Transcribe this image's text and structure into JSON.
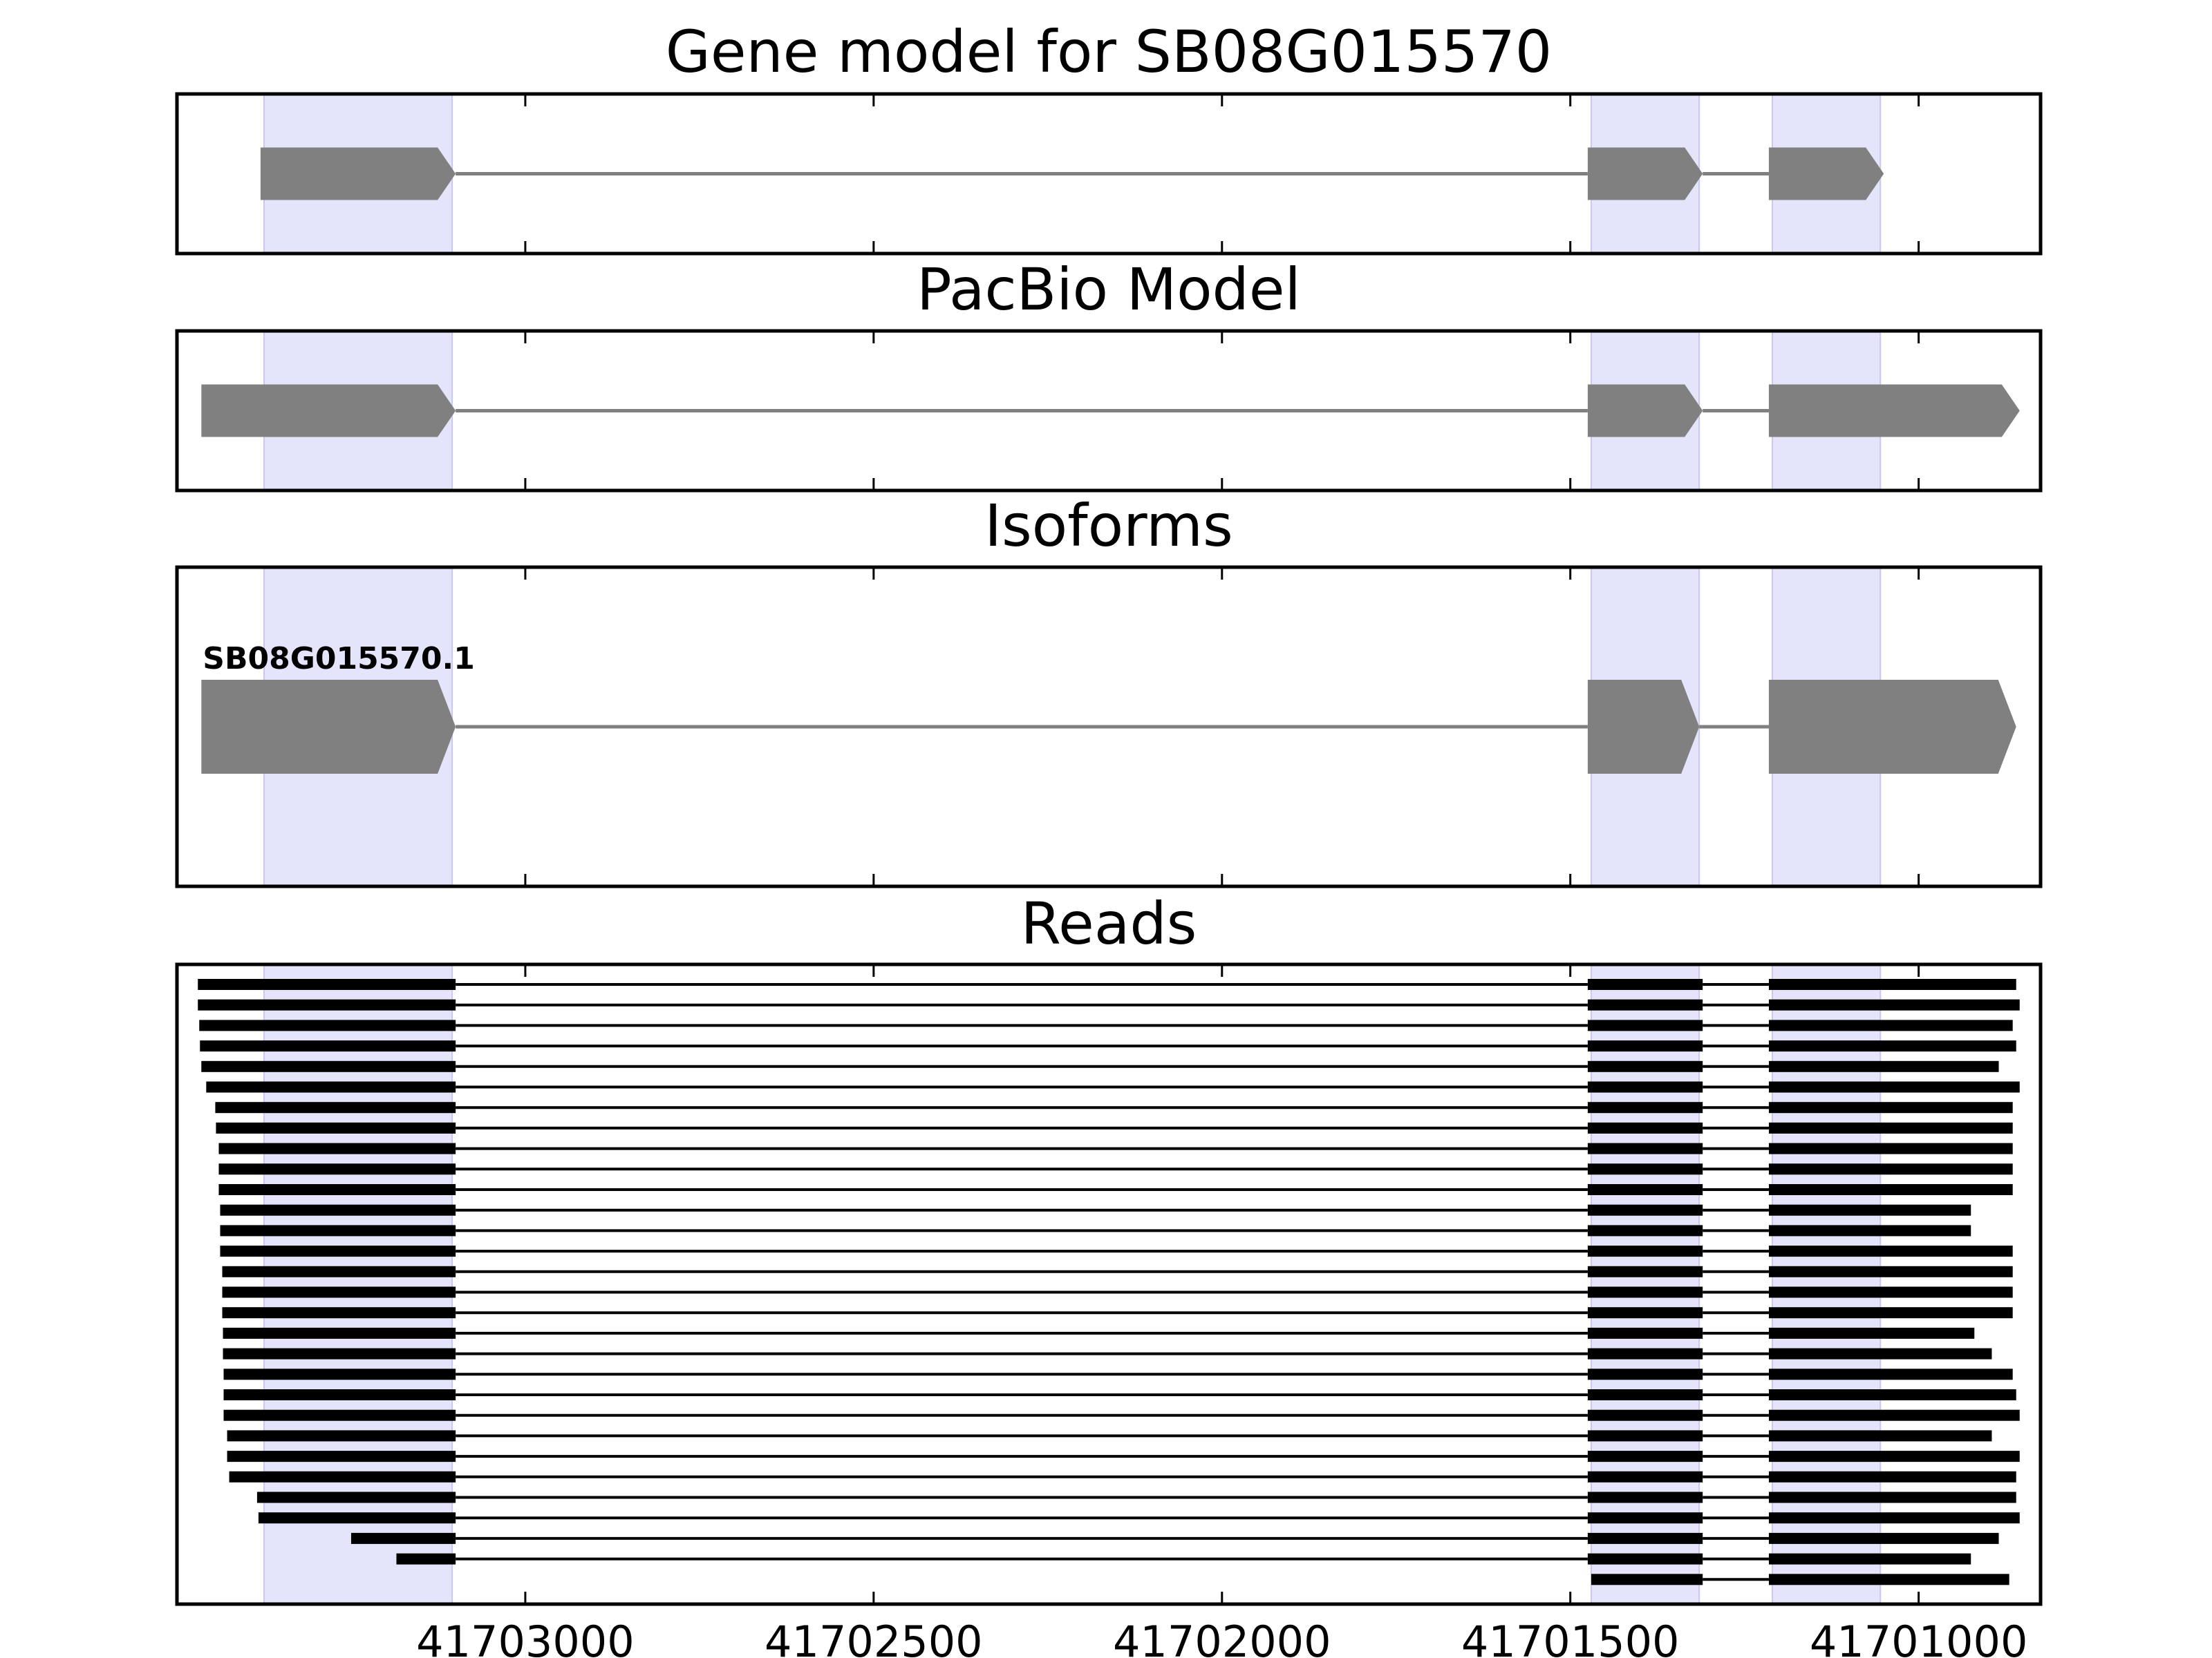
{
  "chart_data": {
    "type": "gene-model",
    "x_axis": {
      "direction": "descending",
      "ticks": [
        41703000,
        41702500,
        41702000,
        41701500,
        41701000
      ],
      "tick_labels": [
        "41703000",
        "41702500",
        "41702000",
        "41701500",
        "41701000"
      ],
      "xlim": [
        41703500,
        41700825
      ]
    },
    "exon_highlights": [
      [
        41703375,
        41703105
      ],
      [
        41701470,
        41701315
      ],
      [
        41701210,
        41701055
      ]
    ],
    "colors": {
      "model": "#808080",
      "read": "#000000",
      "highlight": "#e4e4fb",
      "highlight_edge": "#c8c8f0"
    },
    "panels": [
      {
        "title": "Gene model for SB08G015570",
        "kind": "model",
        "models": [
          {
            "label": "",
            "exons": [
              [
                41703380,
                41703100
              ],
              [
                41701475,
                41701310
              ],
              [
                41701215,
                41701050
              ]
            ]
          }
        ]
      },
      {
        "title": "PacBio Model",
        "kind": "model",
        "models": [
          {
            "label": "",
            "exons": [
              [
                41703465,
                41703100
              ],
              [
                41701475,
                41701310
              ],
              [
                41701215,
                41700855
              ]
            ]
          }
        ]
      },
      {
        "title": "Isoforms",
        "kind": "model",
        "models": [
          {
            "label": "SB08G015570.1",
            "exons": [
              [
                41703465,
                41703100
              ],
              [
                41701475,
                41701315
              ],
              [
                41701215,
                41700860
              ]
            ]
          }
        ]
      },
      {
        "title": "Reads",
        "kind": "reads",
        "reads": [
          [
            41703470,
            41700860
          ],
          [
            41703470,
            41700855
          ],
          [
            41703468,
            41700865
          ],
          [
            41703467,
            41700860
          ],
          [
            41703465,
            41700885
          ],
          [
            41703458,
            41700855
          ],
          [
            41703445,
            41700865
          ],
          [
            41703444,
            41700865
          ],
          [
            41703440,
            41700865
          ],
          [
            41703440,
            41700865
          ],
          [
            41703440,
            41700865
          ],
          [
            41703438,
            41700925
          ],
          [
            41703438,
            41700925
          ],
          [
            41703438,
            41700865
          ],
          [
            41703435,
            41700865
          ],
          [
            41703435,
            41700865
          ],
          [
            41703435,
            41700865
          ],
          [
            41703434,
            41700920
          ],
          [
            41703434,
            41700895
          ],
          [
            41703433,
            41700865
          ],
          [
            41703433,
            41700860
          ],
          [
            41703433,
            41700855
          ],
          [
            41703428,
            41700895
          ],
          [
            41703428,
            41700855
          ],
          [
            41703425,
            41700860
          ],
          [
            41703385,
            41700860
          ],
          [
            41703383,
            41700855
          ],
          [
            41703250,
            41700885
          ],
          [
            41703185,
            41700925
          ],
          [
            41701470,
            41700870
          ]
        ]
      }
    ]
  }
}
